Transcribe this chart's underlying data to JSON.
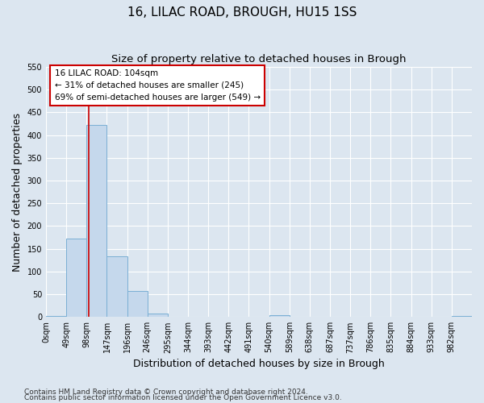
{
  "title": "16, LILAC ROAD, BROUGH, HU15 1SS",
  "subtitle": "Size of property relative to detached houses in Brough",
  "xlabel": "Distribution of detached houses by size in Brough",
  "ylabel": "Number of detached properties",
  "bar_labels": [
    "0sqm",
    "49sqm",
    "98sqm",
    "147sqm",
    "196sqm",
    "246sqm",
    "295sqm",
    "344sqm",
    "393sqm",
    "442sqm",
    "491sqm",
    "540sqm",
    "589sqm",
    "638sqm",
    "687sqm",
    "737sqm",
    "786sqm",
    "835sqm",
    "884sqm",
    "933sqm",
    "982sqm"
  ],
  "bar_values": [
    3,
    173,
    422,
    133,
    57,
    7,
    0,
    0,
    0,
    0,
    0,
    4,
    0,
    0,
    0,
    0,
    0,
    0,
    0,
    0,
    3
  ],
  "bar_color": "#c5d8ec",
  "bar_edge_color": "#7aafd4",
  "ylim": [
    0,
    550
  ],
  "yticks": [
    0,
    50,
    100,
    150,
    200,
    250,
    300,
    350,
    400,
    450,
    500,
    550
  ],
  "property_line_x": 104,
  "bin_width": 49,
  "annotation_title": "16 LILAC ROAD: 104sqm",
  "annotation_line1": "← 31% of detached houses are smaller (245)",
  "annotation_line2": "69% of semi-detached houses are larger (549) →",
  "annotation_box_color": "#ffffff",
  "annotation_box_edge_color": "#cc0000",
  "property_line_color": "#cc0000",
  "footer_line1": "Contains HM Land Registry data © Crown copyright and database right 2024.",
  "footer_line2": "Contains public sector information licensed under the Open Government Licence v3.0.",
  "background_color": "#dce6f0",
  "plot_background_color": "#dce6f0",
  "grid_color": "#ffffff",
  "title_fontsize": 11,
  "subtitle_fontsize": 9.5,
  "axis_label_fontsize": 9,
  "tick_fontsize": 7,
  "annotation_fontsize": 7.5,
  "footer_fontsize": 6.5
}
